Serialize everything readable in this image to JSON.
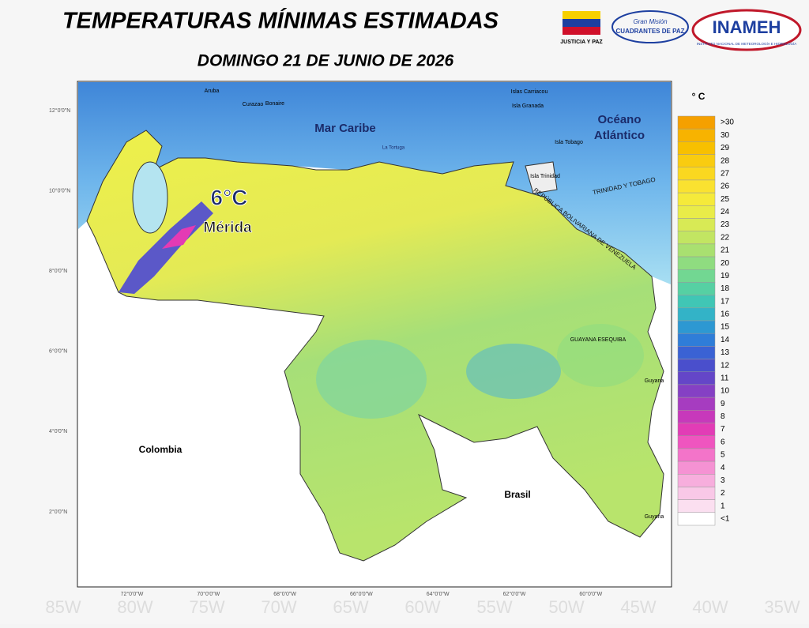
{
  "header": {
    "title": "TEMPERATURAS MÍNIMAS ESTIMADAS",
    "subtitle": "DOMINGO 21 DE JUNIO DE 2026"
  },
  "logos": {
    "ministry": "JUSTICIA Y PAZ",
    "mission_top": "Gran Misión",
    "mission": "CUADRANTES DE PAZ",
    "institute": "INAMEH",
    "institute_full": "INSTITUTO NACIONAL DE METEOROLOGÍA E HIDROLOGÍA"
  },
  "highlight": {
    "value": "6°C",
    "place": "Mérida"
  },
  "map_labels": [
    "Mar Caribe",
    "Océano",
    "Atlántico",
    "Colombia",
    "Brasil",
    "Guyana",
    "Guyana",
    "GUAYANA ESEQUIBA",
    "TRINIDAD Y TOBAGO",
    "REPÚBLICA BOLIVARIANA DE VENEZUELA",
    "Aruba",
    "Curazao",
    "Bonaire",
    "Isla Trinidad",
    "Isla Tobago",
    "Isla Granada",
    "Islas Carriacou",
    "La Tortuga"
  ],
  "lat_labels": [
    "12°0'0\"N",
    "10°0'0\"N",
    "8°0'0\"N",
    "6°0'0\"N",
    "4°0'0\"N",
    "2°0'0\"N"
  ],
  "lon_labels": [
    "72°0'0\"W",
    "70°0'0\"W",
    "68°0'0\"W",
    "66°0'0\"W",
    "64°0'0\"W",
    "62°0'0\"W",
    "60°0'0\"W"
  ],
  "background_labels": [
    "85W",
    "80W",
    "75W",
    "70W",
    "65W",
    "60W",
    "55W",
    "50W",
    "45W",
    "40W",
    "35W"
  ],
  "legend": {
    "unit": "° C",
    "labels": [
      ">30",
      "30",
      "29",
      "28",
      "27",
      "26",
      "25",
      "24",
      "23",
      "22",
      "21",
      "20",
      "19",
      "18",
      "17",
      "16",
      "15",
      "14",
      "13",
      "12",
      "11",
      "10",
      "9",
      "8",
      "7",
      "6",
      "5",
      "4",
      "3",
      "2",
      "1",
      "<1"
    ],
    "colors": [
      "#f5a000",
      "#f7b300",
      "#f8c000",
      "#f9cc10",
      "#fad820",
      "#fae230",
      "#f5ea3a",
      "#e9ec48",
      "#d8ea55",
      "#c2e562",
      "#a9e070",
      "#8fdc80",
      "#72d792",
      "#56d0a3",
      "#40c6b5",
      "#33b3c7",
      "#2d98d2",
      "#2f7dd8",
      "#3a62d4",
      "#4a4fcc",
      "#6446c8",
      "#8540c4",
      "#a63cc0",
      "#c739bb",
      "#e23cb6",
      "#ef55bf",
      "#f374c9",
      "#f592d3",
      "#f7aedd",
      "#f9c8e7",
      "#fbdff0",
      "#ffffff"
    ]
  }
}
